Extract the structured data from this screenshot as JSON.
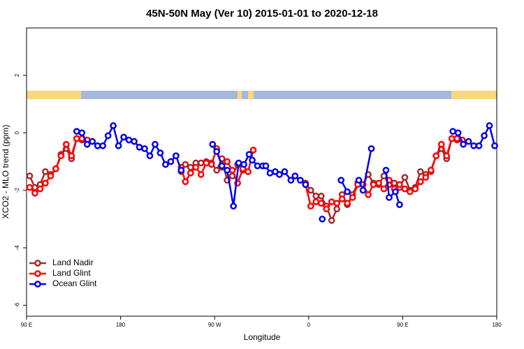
{
  "chart_data": {
    "type": "line",
    "title": "45N-50N May (Ver 10)   2015-01-01 to 2020-12-18",
    "x_label": "Longitude",
    "y_label": "XCO2 - MLO trend (ppm)",
    "xlim": [
      90,
      540
    ],
    "ylim": [
      -6.38,
      3.65
    ],
    "xticks": [
      {
        "value": 90,
        "label": "90 E"
      },
      180,
      {
        "value": 270,
        "label": "90 W"
      },
      {
        "value": 360,
        "label": "0"
      },
      {
        "value": 450,
        "label": "90 E"
      },
      {
        "value": 540,
        "label": "180"
      }
    ],
    "yticks": [
      -6,
      -4,
      -2,
      0,
      2
    ],
    "legend": "bottom-left",
    "series": [
      {
        "name": "Land Nadir",
        "color": "#a52a2a",
        "x": [
          93,
          98,
          103,
          108,
          113,
          118,
          123,
          128,
          133,
          138,
          143,
          null,
          238,
          242,
          247,
          252,
          257,
          262,
          267,
          272,
          277,
          282,
          287,
          292,
          297,
          302,
          null,
          357,
          362,
          367,
          372,
          377,
          382,
          387,
          392,
          397,
          402,
          407,
          412,
          417,
          422,
          427,
          432,
          437,
          442,
          447,
          452,
          457,
          462,
          467,
          472,
          477,
          482,
          487,
          492,
          497,
          502
        ],
        "values": [
          -1.5,
          -1.9,
          -1.8,
          -1.35,
          -1.45,
          -1.25,
          -0.75,
          -0.55,
          -0.9,
          -0.2,
          -0.25,
          null,
          -1.35,
          -1.1,
          -1.2,
          -1.05,
          -1.05,
          -1.0,
          -1.05,
          -1.3,
          -0.9,
          -1.65,
          -1.5,
          -1.1,
          -1.3,
          -1.35,
          null,
          -1.75,
          -2.0,
          -2.2,
          -2.2,
          -2.55,
          -3.05,
          -2.65,
          -2.15,
          -2.5,
          -2.15,
          -1.75,
          -1.8,
          -1.45,
          -1.75,
          -1.8,
          -1.5,
          -1.8,
          -1.75,
          -1.9,
          -1.55,
          -2.0,
          -1.9,
          -1.35,
          -1.45,
          -1.35,
          -0.8,
          -0.55,
          -0.9,
          -0.2,
          -0.25
        ]
      },
      {
        "name": "Land Glint",
        "color": "#ff0000",
        "x": [
          93,
          98,
          103,
          108,
          113,
          118,
          123,
          128,
          133,
          138,
          143,
          148,
          null,
          238,
          242,
          247,
          252,
          257,
          262,
          267,
          272,
          277,
          282,
          287,
          292,
          297,
          302,
          307,
          null,
          357,
          362,
          367,
          372,
          377,
          382,
          387,
          392,
          397,
          402,
          407,
          412,
          417,
          422,
          427,
          432,
          437,
          442,
          447,
          452,
          457,
          462,
          467,
          472,
          477,
          482,
          487,
          492,
          497,
          502,
          507
        ],
        "values": [
          -1.9,
          -2.1,
          -1.95,
          -1.75,
          -1.5,
          -1.25,
          -0.8,
          -0.4,
          -0.8,
          -0.2,
          -0.2,
          -0.25,
          null,
          -1.2,
          -1.7,
          -1.4,
          -1.2,
          -1.45,
          -1.05,
          -1.1,
          -0.55,
          -1.2,
          -1.0,
          -1.3,
          -1.75,
          -1.25,
          -1.35,
          -0.6,
          null,
          -1.8,
          -2.55,
          -2.4,
          -2.45,
          -2.65,
          -2.4,
          -2.45,
          -2.3,
          -2.45,
          -2.25,
          -1.8,
          -1.8,
          -2.15,
          -1.8,
          -1.75,
          -1.95,
          -1.65,
          -1.95,
          -1.8,
          -1.95,
          -2.05,
          -1.95,
          -1.7,
          -1.55,
          -1.3,
          -0.8,
          -0.4,
          -0.8,
          -0.2,
          -0.2,
          -0.25
        ]
      },
      {
        "name": "Ocean Glint",
        "color": "#0000ee",
        "x": [
          138,
          143,
          148,
          153,
          158,
          163,
          168,
          173,
          178,
          183,
          188,
          193,
          198,
          203,
          208,
          213,
          218,
          223,
          228,
          233,
          238,
          null,
          268,
          272,
          277,
          282,
          288,
          293,
          298,
          303,
          306,
          311,
          316,
          319,
          323,
          328,
          332,
          337,
          343,
          347,
          352,
          357,
          null,
          373,
          null,
          391,
          397,
          null,
          408,
          412,
          420,
          null,
          434,
          437,
          443,
          447,
          null,
          498,
          503,
          508,
          513,
          518,
          523,
          528,
          533,
          538
        ],
        "values": [
          0.05,
          0,
          -0.4,
          -0.3,
          -0.45,
          -0.45,
          -0.1,
          0.25,
          -0.45,
          -0.15,
          -0.25,
          -0.3,
          -0.5,
          -0.55,
          -0.8,
          -0.4,
          -0.7,
          -1.1,
          -1.0,
          -0.8,
          -1.3,
          null,
          -0.4,
          -0.65,
          -1.15,
          -1.3,
          -2.55,
          -1.05,
          -1.1,
          -0.75,
          -0.95,
          -1.15,
          -1.15,
          -1.15,
          -1.4,
          -1.35,
          -1.45,
          -1.35,
          -1.65,
          -1.5,
          -1.65,
          -1.8,
          null,
          -3.0,
          null,
          -1.65,
          -2.05,
          null,
          -1.65,
          -2.0,
          -0.55,
          null,
          -1.3,
          -2.25,
          -2.05,
          -2.5,
          null,
          0.05,
          0,
          -0.4,
          -0.3,
          -0.45,
          -0.45,
          -0.1,
          0.25,
          -0.45
        ]
      }
    ]
  }
}
